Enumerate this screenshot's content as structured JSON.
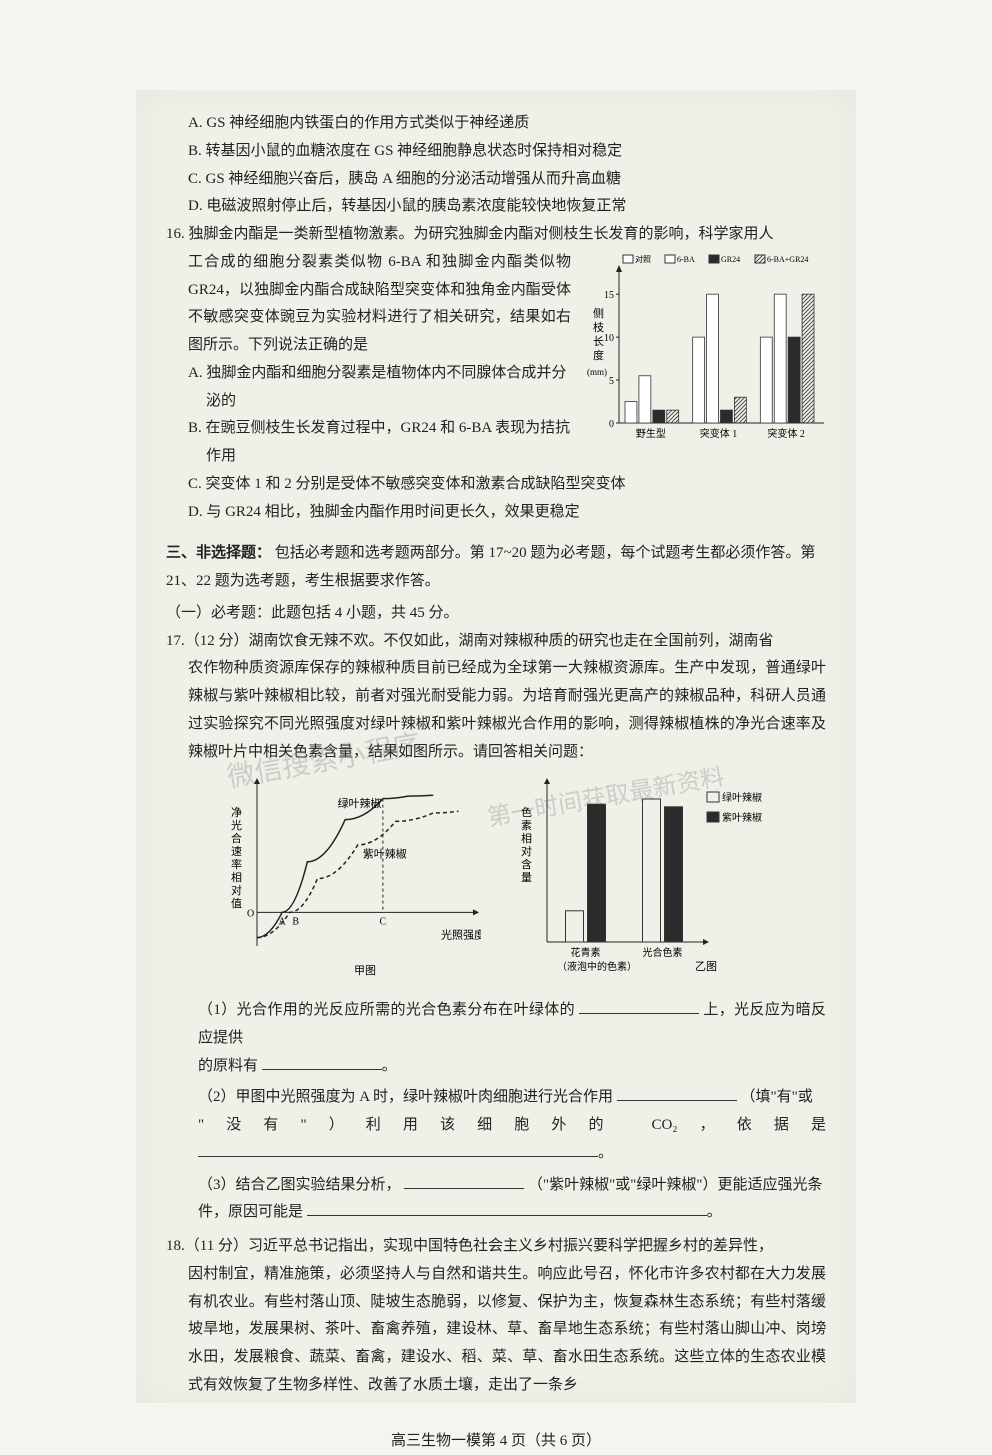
{
  "options15": {
    "a": "A. GS 神经细胞内铁蛋白的作用方式类似于神经递质",
    "b": "B. 转基因小鼠的血糖浓度在 GS 神经细胞静息状态时保持相对稳定",
    "c": "C. GS 神经细胞兴奋后，胰岛 A 细胞的分泌活动增强从而升高血糖",
    "d": "D. 电磁波照射停止后，转基因小鼠的胰岛素浓度能较快地恢复正常"
  },
  "q16": {
    "lead": "16. 独脚金内酯是一类新型植物激素。为研究独脚金内酯对侧枝生长发育的影响，科学家用人",
    "body": "工合成的细胞分裂素类似物 6-BA 和独脚金内酯类似物 GR24，以独脚金内酯合成缺陷型突变体和独角金内酯受体不敏感突变体豌豆为实验材料进行了相关研究，结果如右图所示。下列说法正确的是",
    "optA": "A. 独脚金内酯和细胞分裂素是植物体内不同腺体合成并分泌的",
    "optB": "B. 在豌豆侧枝生长发育过程中，GR24 和 6-BA 表现为拮抗作用",
    "optC": "C. 突变体 1 和 2 分别是受体不敏感突变体和激素合成缺陷型突变体",
    "optD": "D. 与 GR24 相比，独脚金内酯作用时间更长久，效果更稳定",
    "chart": {
      "type": "bar",
      "legend": [
        "对照",
        "6-BA",
        "GR24",
        "6-BA+GR24"
      ],
      "legend_colors": [
        "#ffffff",
        "#ffffff",
        "#2b2b2b",
        "pattern"
      ],
      "legend_borders": [
        "#333",
        "#333",
        "#333",
        "#333"
      ],
      "ylabel": "侧枝长度",
      "yunit": "(mm)",
      "ylim": [
        0,
        17
      ],
      "yticks": [
        0,
        5,
        10,
        15
      ],
      "categories": [
        "野生型",
        "突变体 1",
        "突变体 2"
      ],
      "values": {
        "野生型": [
          2.5,
          5.5,
          1.5,
          1.5
        ],
        "突变体 1": [
          10,
          15,
          1.5,
          3
        ],
        "突变体 2": [
          10,
          15,
          10,
          15
        ]
      },
      "background": "#f0efe8",
      "axis_color": "#222"
    }
  },
  "section3": {
    "heading": "三、非选择题：",
    "heading_rest": "包括必考题和选考题两部分。第 17~20 题为必考题，每个试题考生都必须作答。第 21、22 题为选考题，考生根据要求作答。",
    "subheading": "（一）必考题：此题包括 4 小题，共 45 分。"
  },
  "q17": {
    "head": "17.（12 分）湖南饮食无辣不欢。不仅如此，湖南对辣椒种质的研究也走在全国前列，湖南省",
    "body": "农作物种质资源库保存的辣椒种质目前已经成为全球第一大辣椒资源库。生产中发现，普通绿叶辣椒与紫叶辣椒相比较，前者对强光耐受能力弱。为培育耐强光更高产的辣椒品种，科研人员通过实验探究不同光照强度对绿叶辣椒和紫叶辣椒光合作用的影响，测得辣椒植株的净光合速率及辣椒叶片中相关色素含量，结果如图所示。请回答相关问题：",
    "chart_line": {
      "type": "line",
      "title": "甲图",
      "xlabel": "光照强度",
      "ylabel": "净光合速率相对值",
      "x_marks": [
        "A",
        "B",
        "C"
      ],
      "series": [
        {
          "name": "绿叶辣椒",
          "color": "#2b2b2b",
          "points": [
            [
              0,
              -3
            ],
            [
              1,
              0
            ],
            [
              2,
              6
            ],
            [
              3.5,
              11
            ],
            [
              5,
              13.5
            ],
            [
              6,
              13.8
            ],
            [
              7,
              13.9
            ]
          ]
        },
        {
          "name": "紫叶辣椒",
          "color": "#2b2b2b",
          "dash": true,
          "points": [
            [
              0,
              -3
            ],
            [
              1.3,
              0
            ],
            [
              2.4,
              4
            ],
            [
              4,
              8
            ],
            [
              5.5,
              10.8
            ],
            [
              7,
              11.8
            ],
            [
              8,
              12
            ]
          ]
        }
      ],
      "c_x": 5,
      "background": "#f0efe8"
    },
    "chart_bar": {
      "type": "bar",
      "title": "乙图",
      "xlabel_note": "（液泡中的色素）",
      "ylabel": "色素相对含量",
      "categories": [
        "花青素",
        "光合色素"
      ],
      "series": [
        {
          "name": "绿叶辣椒",
          "color": "#f0efe8",
          "border": "#333",
          "values": [
            1.2,
            5.5
          ]
        },
        {
          "name": "紫叶辣椒",
          "color": "#2b2b2b",
          "border": "#333",
          "values": [
            5.3,
            5.2
          ]
        }
      ],
      "ylim": [
        0,
        6
      ],
      "legend_swatches": [
        {
          "label": "绿叶辣椒",
          "fill": "#f0efe8",
          "border": "#333"
        },
        {
          "label": "紫叶辣椒",
          "fill": "#2b2b2b",
          "border": "#333"
        }
      ]
    },
    "watermarks": [
      "微信搜索小程序",
      "第一时间获取最新资料",
      "高考"
    ],
    "sub1_a": "（1）光合作用的光反应所需的光合色素分布在叶绿体的",
    "sub1_b": "上，光反应为暗反应提供",
    "sub1_c": "的原料有",
    "sub2_a": "（2）甲图中光照强度为 A 时，绿叶辣椒叶肉细胞进行光合作用",
    "sub2_b": "（填\"有\"或",
    "sub2_c": "\"没有\"）利用该细胞外的 CO₂，依据是",
    "sub3_a": "（3）结合乙图实验结果分析，",
    "sub3_b": "（\"紫叶辣椒\"或\"绿叶辣椒\"）更能适应强光条",
    "sub3_c": "件，原因可能是"
  },
  "q18": {
    "head": "18.（11 分）习近平总书记指出，实现中国特色社会主义乡村振兴要科学把握乡村的差异性，",
    "body": "因村制宜，精准施策，必须坚持人与自然和谐共生。响应此号召，怀化市许多农村都在大力发展有机农业。有些村落山顶、陡坡生态脆弱，以修复、保护为主，恢复森林生态系统；有些村落缓坡旱地，发展果树、茶叶、畜禽养殖，建设林、草、畜旱地生态系统；有些村落山脚山冲、岗塝水田，发展粮食、蔬菜、畜禽，建设水、稻、菜、草、畜水田生态系统。这些立体的生态农业模式有效恢复了生物多样性、改善了水质土壤，走出了一条乡"
  },
  "footer": "高三生物一模第 4 页（共 6 页）"
}
